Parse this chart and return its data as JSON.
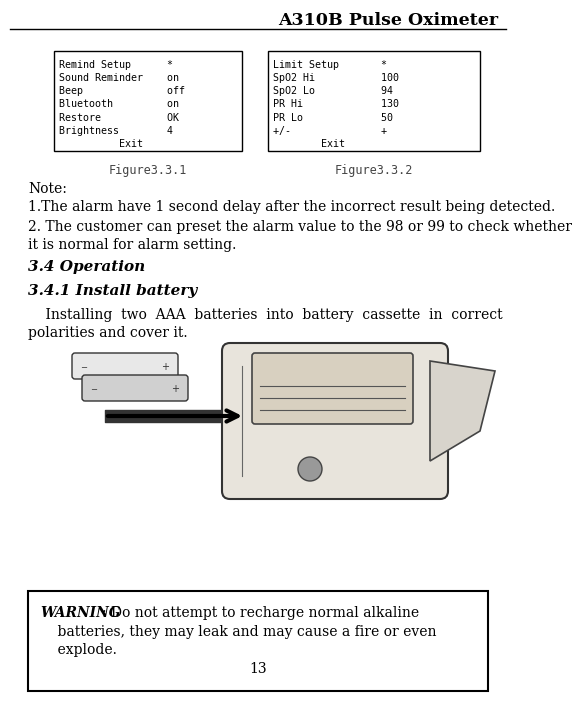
{
  "title": "A310B Pulse Oximeter",
  "page_number": "13",
  "fig_label1": "Figure3.3.1",
  "fig_label2": "Figure3.3.2",
  "box1_lines": [
    "Remind Setup      *",
    "Sound Reminder    on",
    "Beep              off",
    "Bluetooth         on",
    "Restore           OK",
    "Brightness        4",
    "          Exit"
  ],
  "box2_lines": [
    "Limit Setup       *",
    "SpO2 Hi           100",
    "SpO2 Lo           94",
    "PR Hi             130",
    "PR Lo             50",
    "+/-               +",
    "        Exit"
  ],
  "note_header": "Note:",
  "note1": "1.The alarm have 1 second delay after the incorrect result being detected.",
  "note2": "2. The customer can preset the alarm value to the 98 or 99 to check whether",
  "note2b": "it is normal for alarm setting.",
  "section_header": "3.4 Operation",
  "subsection_header": "3.4.1 Install battery",
  "body_line1": "    Installing  two  AAA  batteries  into  battery  cassette  in  correct",
  "body_line2": "polarities and cover it.",
  "warning_bold": "WARNING",
  "warning_rest": ": Do not attempt to recharge normal alkaline",
  "warning_line2": "    batteries, they may leak and may cause a fire or even",
  "warning_line3": "    explode.",
  "bg_color": "#ffffff",
  "text_color": "#000000",
  "mono_font_size": 7.2,
  "body_font_size": 10.0,
  "section_font_size": 11.0,
  "title_font_size": 12.5,
  "fig_label_font_size": 8.5
}
